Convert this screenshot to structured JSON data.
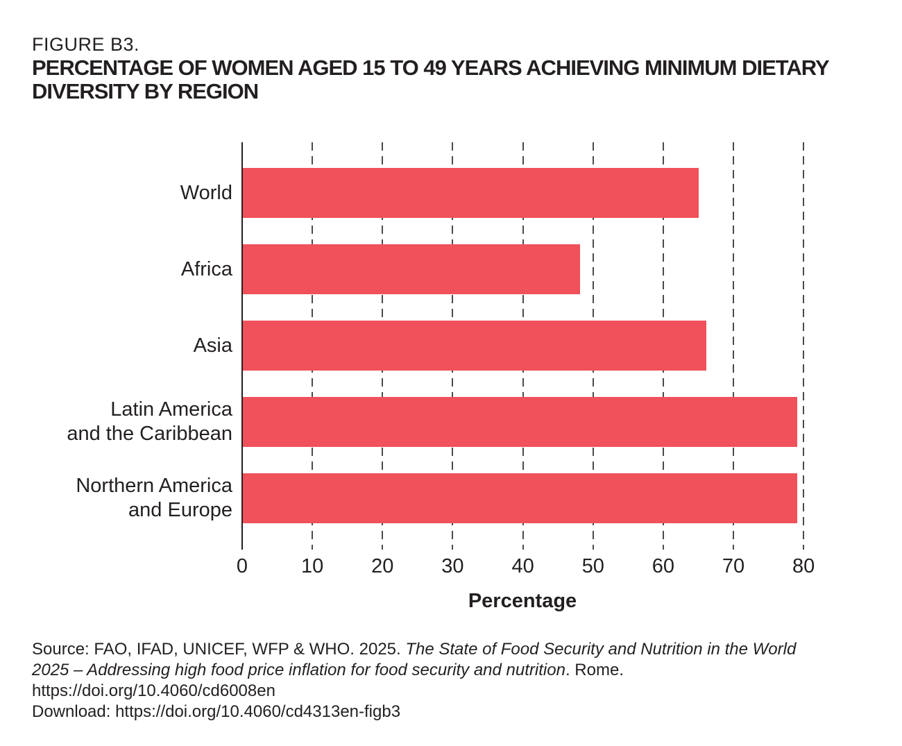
{
  "figure": {
    "label": "FIGURE B3.",
    "title_lines": [
      "PERCENTAGE OF WOMEN AGED 15 TO 49 YEARS ACHIEVING MINIMUM DIETARY",
      "DIVERSITY BY REGION"
    ]
  },
  "chart_data": {
    "type": "bar",
    "orientation": "horizontal",
    "categories": [
      "World",
      "Africa",
      "Asia",
      "Latin America and the Caribbean",
      "Northern America and Europe"
    ],
    "category_lines": [
      [
        "World"
      ],
      [
        "Africa"
      ],
      [
        "Asia"
      ],
      [
        "Latin America",
        "and the Caribbean"
      ],
      [
        "Northern America",
        "and Europe"
      ]
    ],
    "values": [
      65,
      48,
      66,
      79,
      79
    ],
    "xlabel": "Percentage",
    "xticks": [
      0,
      10,
      20,
      30,
      40,
      50,
      60,
      70,
      80
    ],
    "xlim": [
      0,
      83
    ],
    "grid": "vertical dashed gridlines every 10",
    "legend": "none",
    "bar_color": "#F0515A",
    "axis_color": "#231f20",
    "gridline_color": "#4a4a4a"
  },
  "source": {
    "line1_normal": "Source: FAO, IFAD, UNICEF, WFP & WHO. 2025. ",
    "line1_italic": "The State of Food Security and Nutrition in the World",
    "line2_italic": "2025 – Addressing high food price inflation for food security and nutrition",
    "line2_normal": ". Rome.",
    "line3": "https://doi.org/10.4060/cd6008en",
    "line4": "Download: https://doi.org/10.4060/cd4313en-figb3"
  }
}
